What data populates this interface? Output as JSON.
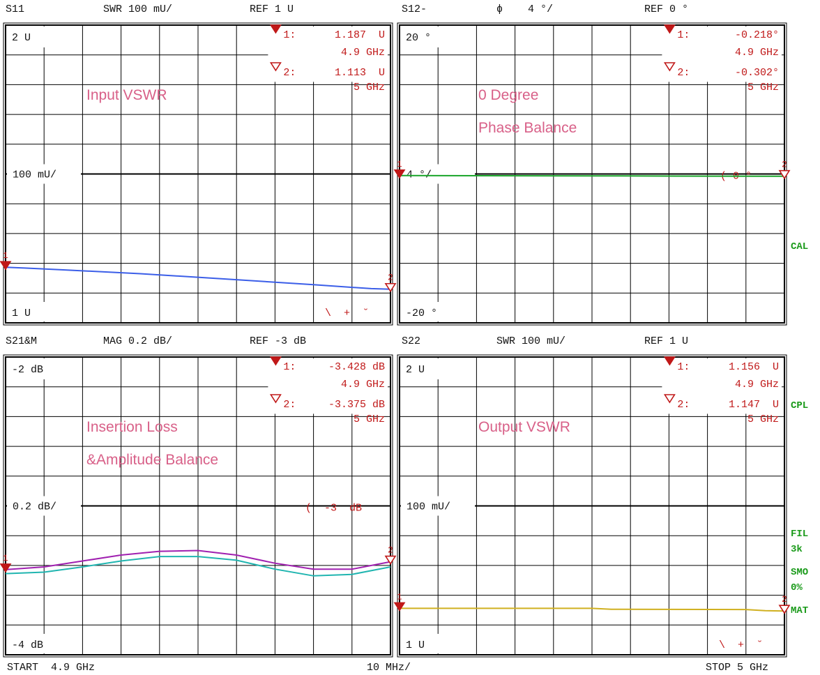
{
  "chart_data": [
    {
      "type": "line",
      "header": {
        "param": "S11",
        "format": "SWR 100 mU/",
        "ref": "REF 1 U"
      },
      "top_label": "2 U",
      "mid_label": "100 mU/",
      "bottom_label": "1 U",
      "annotation": [
        "Input VSWR"
      ],
      "ylim": [
        1,
        2
      ],
      "x": [
        4.9,
        5.0
      ],
      "xlabel": "GHz",
      "markers": [
        {
          "id": "1",
          "value": "1.187  U",
          "freq": "4.9 GHz",
          "filled": true
        },
        {
          "id": "2",
          "value": "1.113  U",
          "freq": "5 GHz",
          "filled": false
        }
      ],
      "status": "\\  +  ˘",
      "series": [
        {
          "color": "#3b5ee8",
          "x": [
            4.9,
            4.905,
            4.915,
            4.935,
            4.96,
            4.98,
            4.995,
            5.0
          ],
          "values": [
            1.187,
            1.184,
            1.178,
            1.165,
            1.145,
            1.128,
            1.115,
            1.113
          ]
        }
      ]
    },
    {
      "type": "line",
      "header": {
        "param": "S12-",
        "format": "ϕ    4 °/",
        "ref": "REF 0 °"
      },
      "top_label": "20 °",
      "mid_label": "4 °/",
      "bottom_label": "-20 °",
      "annotation": [
        "0 Degree",
        "Phase Balance"
      ],
      "ylim": [
        -20,
        20
      ],
      "x": [
        4.9,
        5.0
      ],
      "xlabel": "GHz",
      "markers": [
        {
          "id": "1",
          "value": "-0.218°",
          "freq": "4.9 GHz",
          "filled": true
        },
        {
          "id": "2",
          "value": "-0.302°",
          "freq": "5 GHz",
          "filled": false
        }
      ],
      "limit_text": "( 0 °",
      "series": [
        {
          "color": "#1aa52a",
          "x": [
            4.9,
            4.95,
            4.97,
            5.0
          ],
          "values": [
            -0.218,
            -0.25,
            -0.28,
            -0.302
          ]
        }
      ]
    },
    {
      "type": "line",
      "header": {
        "param": "S21&M",
        "format": "MAG 0.2 dB/",
        "ref": "REF -3 dB"
      },
      "top_label": "-2 dB",
      "mid_label": "0.2 dB/",
      "bottom_label": "-4 dB",
      "annotation": [
        "Insertion Loss",
        "&Amplitude Balance"
      ],
      "ylim": [
        -4,
        -2
      ],
      "x": [
        4.9,
        5.0
      ],
      "xlabel": "GHz",
      "markers": [
        {
          "id": "1",
          "value": "-3.428 dB",
          "freq": "4.9 GHz",
          "filled": true
        },
        {
          "id": "2",
          "value": "-3.375 dB",
          "freq": "5 GHz",
          "filled": false
        }
      ],
      "limit_text": "(  -3  dB",
      "series": [
        {
          "color": "#a020b0",
          "x": [
            4.9,
            4.91,
            4.92,
            4.93,
            4.94,
            4.95,
            4.96,
            4.97,
            4.98,
            4.99,
            5.0
          ],
          "values": [
            -3.428,
            -3.41,
            -3.37,
            -3.33,
            -3.305,
            -3.3,
            -3.33,
            -3.385,
            -3.425,
            -3.425,
            -3.375
          ]
        },
        {
          "color": "#20b5b0",
          "x": [
            4.9,
            4.91,
            4.92,
            4.93,
            4.94,
            4.95,
            4.96,
            4.97,
            4.98,
            4.99,
            5.0
          ],
          "values": [
            -3.455,
            -3.445,
            -3.41,
            -3.37,
            -3.34,
            -3.34,
            -3.365,
            -3.425,
            -3.47,
            -3.46,
            -3.41
          ]
        }
      ]
    },
    {
      "type": "line",
      "header": {
        "param": "S22",
        "format": "SWR 100 mU/",
        "ref": "REF 1 U"
      },
      "top_label": "2 U",
      "mid_label": "100 mU/",
      "bottom_label": "1 U",
      "annotation": [
        "Output VSWR"
      ],
      "ylim": [
        1,
        2
      ],
      "x": [
        4.9,
        5.0
      ],
      "xlabel": "GHz",
      "markers": [
        {
          "id": "1",
          "value": "1.156  U",
          "freq": "4.9 GHz",
          "filled": true
        },
        {
          "id": "2",
          "value": "1.147  U",
          "freq": "5 GHz",
          "filled": false
        }
      ],
      "status": "\\  +  ˘",
      "series": [
        {
          "color": "#d0b020",
          "x": [
            4.9,
            4.95,
            4.955,
            4.99,
            4.995,
            5.0
          ],
          "values": [
            1.156,
            1.156,
            1.153,
            1.152,
            1.148,
            1.147
          ]
        }
      ]
    }
  ],
  "footer": {
    "start": "START  4.9 GHz",
    "span": "10 MHz/",
    "stop": "STOP 5 GHz"
  },
  "side_labels": {
    "cal": "CAL",
    "cpl": "CPL",
    "fil": "FIL",
    "fil_val": "3k",
    "smo": "SMO",
    "smo_val": "0%",
    "mat": "MAT"
  },
  "colors": {
    "marker": "#c01818",
    "annotation": "#d86088",
    "grid": "#000000"
  }
}
